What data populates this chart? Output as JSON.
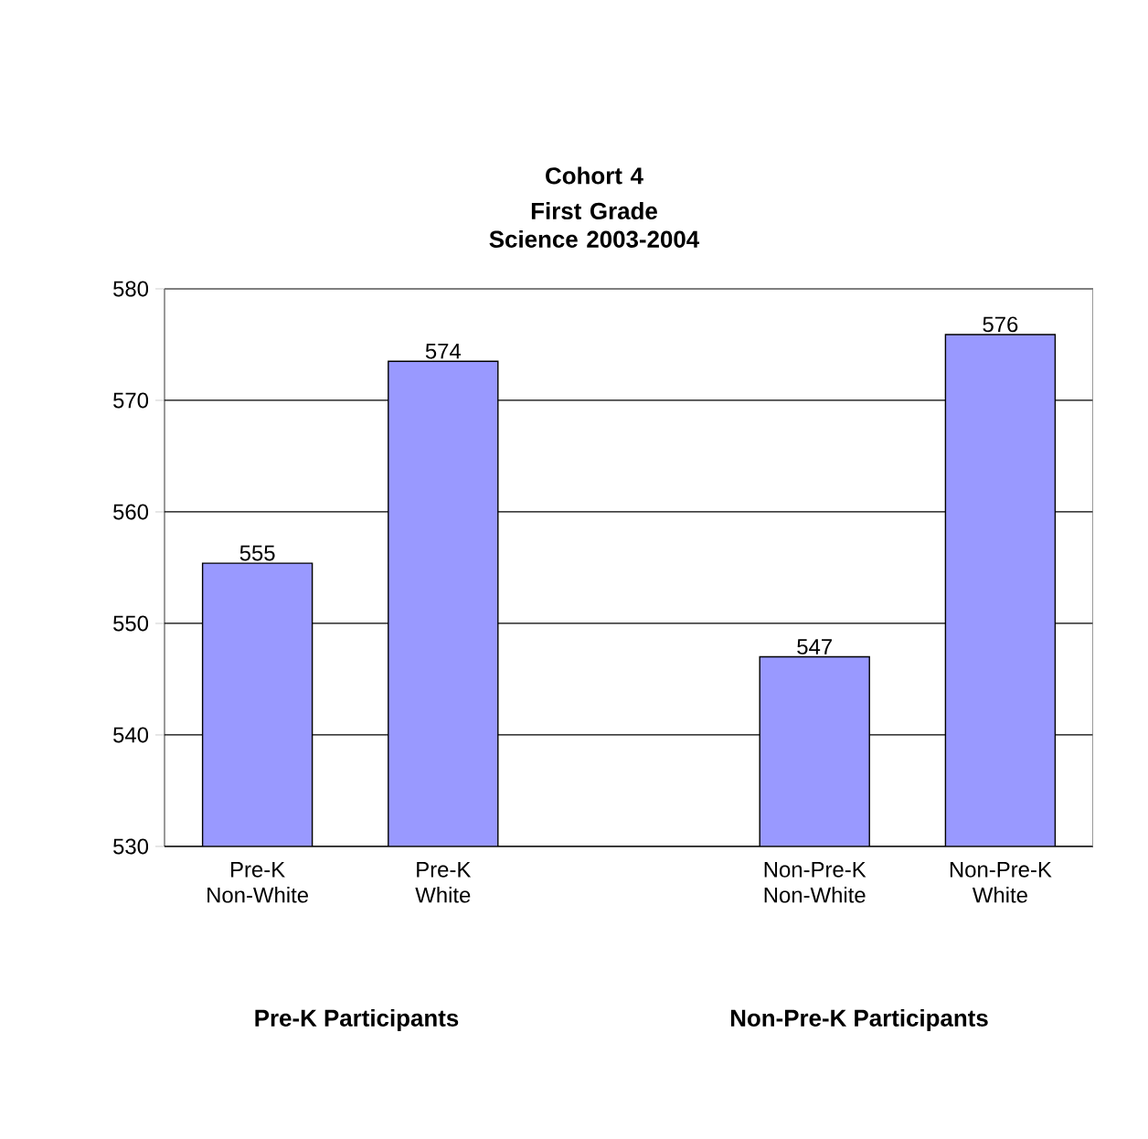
{
  "chart_data": {
    "type": "bar",
    "title": "Cohort 4",
    "subtitle": "First Grade Science 2003-2004",
    "categories": [
      "Pre-K Non-White",
      "Pre-K White",
      null,
      "Non-Pre-K Non-White",
      "Non-Pre-K White"
    ],
    "values": [
      555.4,
      573.5,
      null,
      547.0,
      575.9
    ],
    "value_labels": [
      "555",
      "574",
      null,
      "547",
      "576"
    ],
    "color": "#9999ff",
    "ylim": [
      530,
      580
    ],
    "yticks": [
      530,
      540,
      550,
      560,
      570,
      580
    ],
    "grid": "y",
    "annotations": [
      {
        "text": "Pre-K Participants"
      },
      {
        "text": "Non-Pre-K Participants"
      }
    ]
  }
}
